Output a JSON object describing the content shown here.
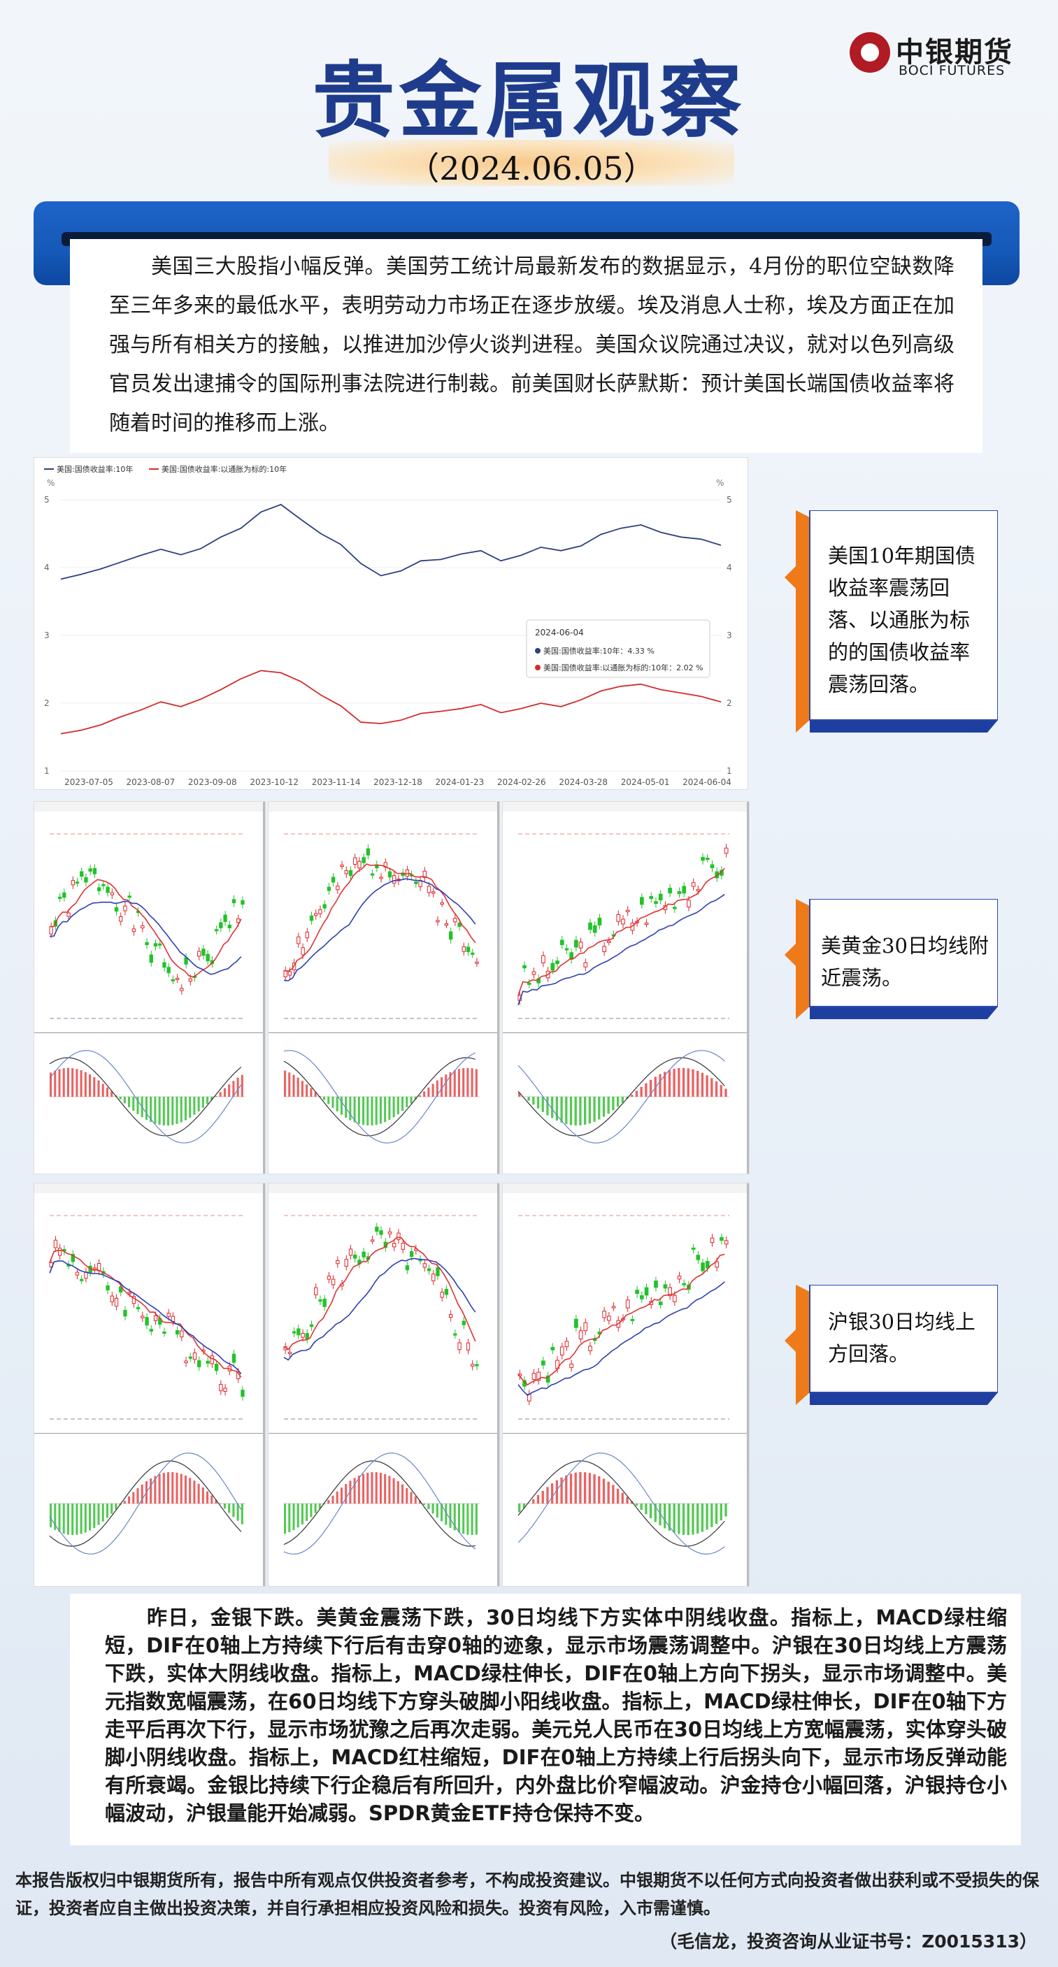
{
  "header": {
    "title": "贵金属观察",
    "date": "（2024.06.05）",
    "logo_cn": "中银期货",
    "logo_en": "BOCI FUTURES"
  },
  "intro_text": "美国三大股指小幅反弹。美国劳工统计局最新发布的数据显示，4月份的职位空缺数降至三年多来的最低水平，表明劳动力市场正在逐步放缓。埃及消息人士称，埃及方面正在加强与所有相关方的接触，以推进加沙停火谈判进程。美国众议院通过决议，就对以色列高级官员发出逮捕令的国际刑事法院进行制裁。前美国财长萨默斯：预计美国长端国债收益率将随着时间的推移而上涨。",
  "comments": {
    "yield": "美国10年期国债收益率震荡回落、以通胀为标的的国债收益率震荡回落。",
    "gold": "美黄金30日均线附近震荡。",
    "silver": "沪银30日均线上方回落。"
  },
  "chart_data": [
    {
      "type": "line",
      "legend": [
        "美国:国债收益率:10年",
        "美国:国债收益率:以通胀为标的:10年"
      ],
      "y_unit_left": "%",
      "y_unit_right": "%",
      "ylim": [
        1,
        5
      ],
      "y_ticks": [
        1,
        2,
        3,
        4,
        5
      ],
      "x_ticks": [
        "2023-07-05",
        "2023-08-07",
        "2023-09-08",
        "2023-10-12",
        "2023-11-14",
        "2023-12-18",
        "2024-01-23",
        "2024-02-26",
        "2024-03-28",
        "2024-05-01",
        "2024-06-04"
      ],
      "series": [
        {
          "name": "美国:国债收益率:10年",
          "color": "#2e3f82",
          "values": [
            3.83,
            3.9,
            3.98,
            4.08,
            4.18,
            4.27,
            4.19,
            4.28,
            4.45,
            4.58,
            4.82,
            4.93,
            4.71,
            4.5,
            4.34,
            4.06,
            3.88,
            3.95,
            4.1,
            4.12,
            4.2,
            4.25,
            4.1,
            4.18,
            4.3,
            4.25,
            4.32,
            4.49,
            4.58,
            4.63,
            4.52,
            4.45,
            4.42,
            4.33
          ]
        },
        {
          "name": "美国:国债收益率:以通胀为标的:10年",
          "color": "#d42b2b",
          "values": [
            1.55,
            1.6,
            1.68,
            1.8,
            1.9,
            2.02,
            1.95,
            2.06,
            2.2,
            2.36,
            2.48,
            2.45,
            2.32,
            2.12,
            1.96,
            1.72,
            1.7,
            1.75,
            1.85,
            1.88,
            1.92,
            1.98,
            1.86,
            1.92,
            2.0,
            1.95,
            2.05,
            2.18,
            2.25,
            2.28,
            2.2,
            2.15,
            2.1,
            2.02
          ]
        }
      ],
      "tooltip": {
        "date": "2024-06-04",
        "line1": "美国:国债收益率:10年：4.33 %",
        "line2": "美国:国债收益率:以通胀为标的:10年：2.02 %"
      }
    }
  ],
  "bottom_text": "昨日，金银下跌。美黄金震荡下跌，30日均线下方实体中阴线收盘。指标上，MACD绿柱缩短，DIF在0轴上方持续下行后有击穿0轴的迹象，显示市场震荡调整中。沪银在30日均线上方震荡下跌，实体大阴线收盘。指标上，MACD绿柱伸长，DIF在0轴上方向下拐头，显示市场调整中。美元指数宽幅震荡，在60日均线下方穿头破脚小阳线收盘。指标上，MACD绿柱伸长，DIF在0轴下方走平后再次下行，显示市场犹豫之后再次走弱。美元兑人民币在30日均线上方宽幅震荡，实体穿头破脚小阴线收盘。指标上，MACD红柱缩短，DIF在0轴上方持续上行后拐头向下，显示市场反弹动能有所衰竭。金银比持续下行企稳后有所回升，内外盘比价窄幅波动。沪金持仓小幅回落，沪银持仓小幅波动，沪银量能开始减弱。SPDR黄金ETF持仓保持不变。",
  "disclaimer": "本报告版权归中银期货所有，报告中所有观点仅供投资者参考，不构成投资建议。中银期货不以任何方式向投资者做出获利或不受损失的保证，投资者应自主做出投资决策，并自行承担相应投资风险和损失。投资有风险，入市需谨慎。",
  "author": "（毛信龙，投资咨询从业证书号：Z0015313）",
  "colors": {
    "title": "#1f3c8c",
    "blue_bar": "#1559b8",
    "orange": "#ee7a1a",
    "candle_up": "#e0242a",
    "candle_down": "#22c22a"
  }
}
